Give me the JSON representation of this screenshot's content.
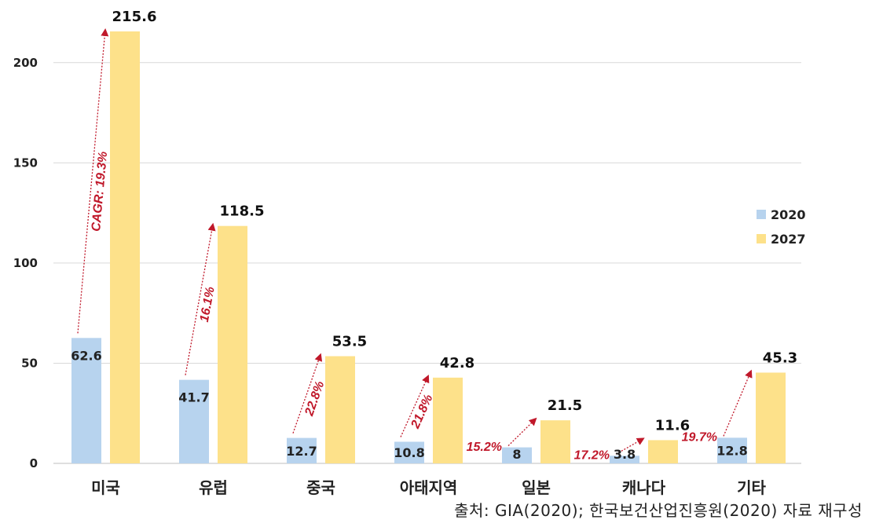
{
  "chart_data": {
    "type": "bar",
    "categories": [
      "미국",
      "유럽",
      "중국",
      "아태지역",
      "일본",
      "캐나다",
      "기타"
    ],
    "series": [
      {
        "name": "2020",
        "values": [
          62.6,
          41.7,
          12.7,
          10.8,
          8,
          3.8,
          12.8
        ],
        "color": "#b7d3ee"
      },
      {
        "name": "2027",
        "values": [
          215.6,
          118.5,
          53.5,
          42.8,
          21.5,
          11.6,
          45.3
        ],
        "color": "#fde18a"
      }
    ],
    "value_labels": [
      [
        "62.6",
        "41.7",
        "12.7",
        "10.8",
        "8",
        "3.8",
        "12.8"
      ],
      [
        "215.6",
        "118.5",
        "53.5",
        "42.8",
        "21.5",
        "11.6",
        "45.3"
      ]
    ],
    "cagr_labels": [
      "CAGR: 19.3%",
      "16.1%",
      "22.8%",
      "21.8%",
      "15.2%",
      "17.2%",
      "19.7%"
    ],
    "cagr_color": "#c0182a",
    "yticks": [
      "0",
      "50",
      "100",
      "150",
      "200"
    ],
    "ylim": [
      0,
      215.6
    ],
    "grid": true,
    "legend_position": "right",
    "title": "",
    "xlabel": "",
    "ylabel": ""
  },
  "source_note": "출처: GIA(2020); 한국보건산업진흥원(2020) 자료 재구성"
}
